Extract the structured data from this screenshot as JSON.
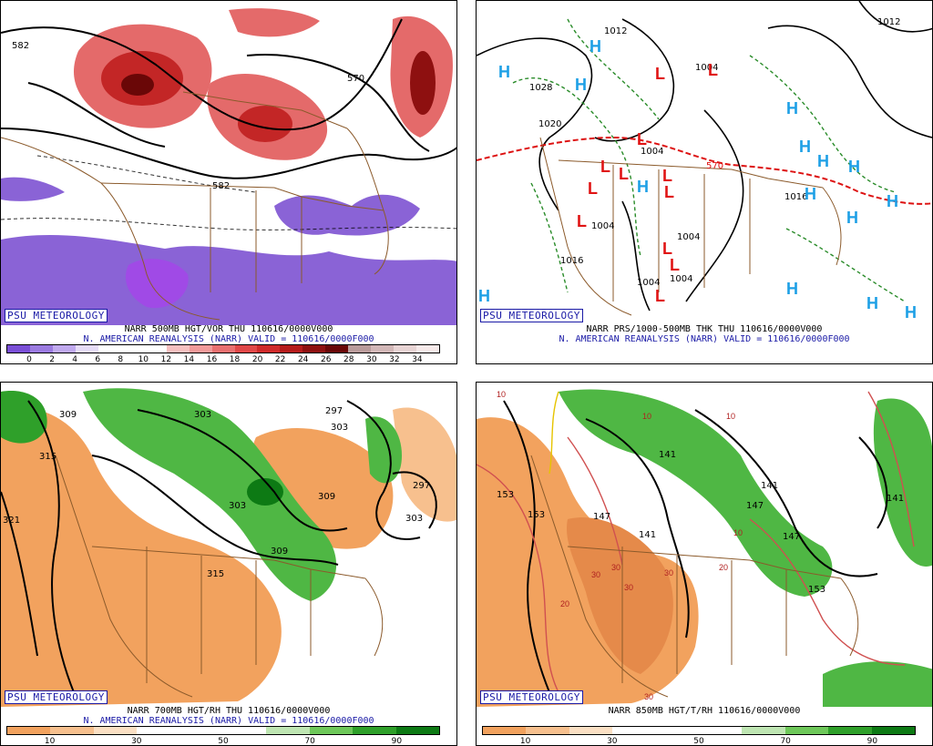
{
  "psu_label": "PSU METEOROLOGY",
  "panels": {
    "p1": {
      "line1": "NARR 500MB HGT/VOR THU 110616/0000V000",
      "line2": "N. AMERICAN REANALYSIS (NARR) VALID = 110616/0000F000",
      "contour_labels": [
        "582",
        "570",
        "582"
      ],
      "colorbar_colors": [
        "#7a4fd6",
        "#9b7be0",
        "#c0a9ee",
        "#e6dcf7",
        "#ffffff",
        "#ffffff",
        "#ffffff",
        "#f6c0c0",
        "#f19a9a",
        "#e97070",
        "#e04848",
        "#cf2a2a",
        "#b51b1b",
        "#8e1010",
        "#6a0707",
        "#b99b9b",
        "#d2b7b7",
        "#e8d4d4",
        "#f7eaea"
      ],
      "colorbar_ticks": [
        "0",
        "2",
        "4",
        "6",
        "8",
        "10",
        "12",
        "14",
        "16",
        "18",
        "20",
        "22",
        "24",
        "26",
        "28",
        "30",
        "32",
        "34"
      ]
    },
    "p2": {
      "line1": "NARR PRS/1000-500MB THK THU 110616/0000V000",
      "line2": "N. AMERICAN REANALYSIS (NARR) VALID = 110616/0000F000",
      "contour_labels": [
        "1012",
        "1012",
        "1028",
        "1020",
        "1004",
        "1004",
        "1004",
        "1004",
        "1004",
        "1016",
        "1016",
        "1004",
        "570"
      ],
      "high_symbol": "H",
      "low_symbol": "L"
    },
    "p3": {
      "line1": "NARR 700MB HGT/RH THU 110616/0000V000",
      "line2": "N. AMERICAN REANALYSIS (NARR) VALID = 110616/0000F000",
      "contour_labels": [
        "309",
        "303",
        "297",
        "303",
        "315",
        "321",
        "303",
        "309",
        "297",
        "303",
        "309",
        "315"
      ],
      "colorbar_colors": [
        "#f2a25e",
        "#f7c08e",
        "#fbe0c4",
        "#ffffff",
        "#ffffff",
        "#ffffff",
        "#bfe6b3",
        "#6ec85a",
        "#2fa02a",
        "#0d7a14"
      ],
      "colorbar_ticks": [
        "10",
        "30",
        "50",
        "70",
        "90"
      ]
    },
    "p4": {
      "line1": "NARR 850MB HGT/T/RH 110616/0000V000",
      "line2": "",
      "contour_labels": [
        "141",
        "153",
        "153",
        "147",
        "141",
        "147",
        "141",
        "141",
        "147",
        "153"
      ],
      "temp_labels": [
        "10",
        "10",
        "10",
        "10",
        "20",
        "20",
        "30",
        "30",
        "30",
        "30",
        "30"
      ],
      "colorbar_colors": [
        "#f2a25e",
        "#f7c08e",
        "#fbe0c4",
        "#ffffff",
        "#ffffff",
        "#ffffff",
        "#bfe6b3",
        "#6ec85a",
        "#2fa02a",
        "#0d7a14"
      ],
      "colorbar_ticks": [
        "10",
        "30",
        "50",
        "70",
        "90"
      ]
    }
  }
}
